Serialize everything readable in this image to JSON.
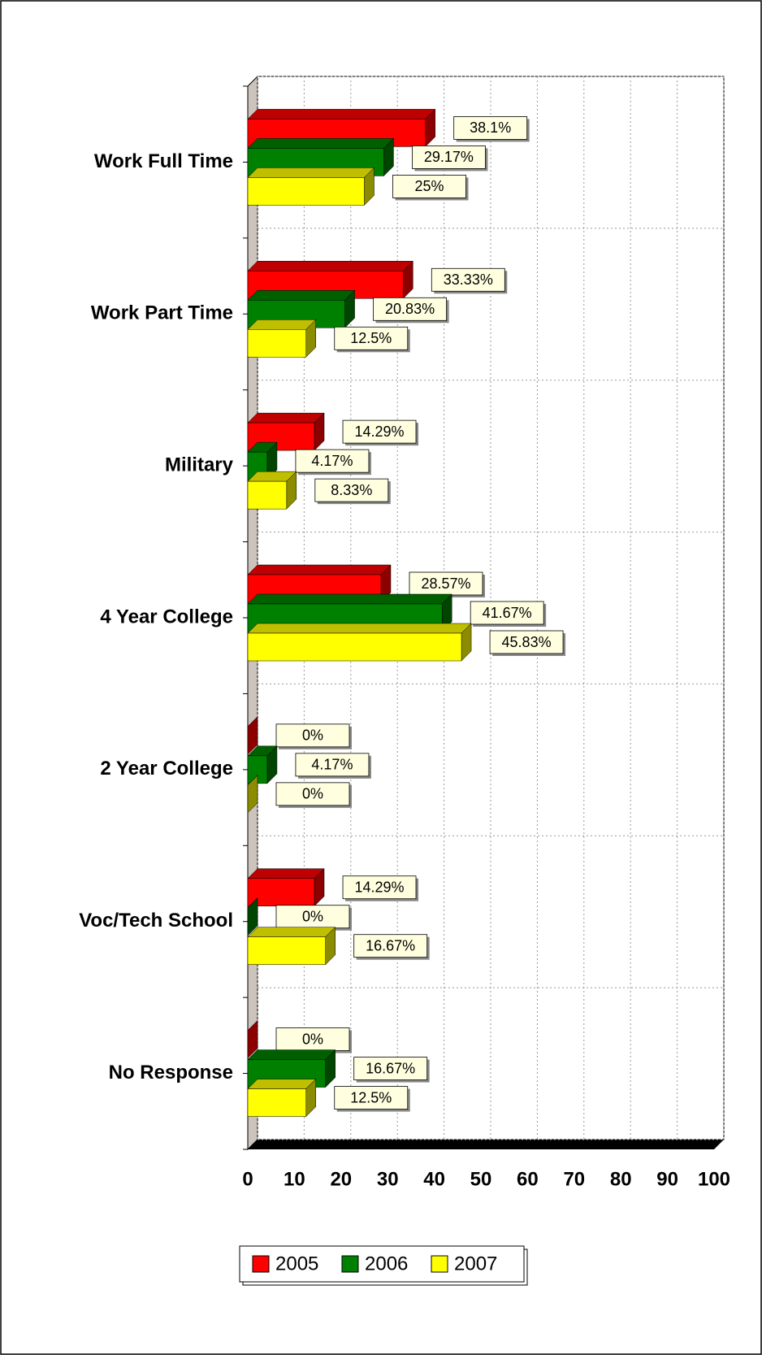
{
  "chart_data": {
    "type": "bar",
    "orientation": "horizontal",
    "categories": [
      "Work Full Time",
      "Work Part Time",
      "Military",
      "4 Year College",
      "2 Year College",
      "Voc/Tech School",
      "No Response"
    ],
    "series": [
      {
        "name": "2005",
        "color": "#ff0000",
        "values": [
          38.1,
          33.33,
          14.29,
          28.57,
          0,
          14.29,
          0
        ],
        "value_labels": [
          "38.1%",
          "33.33%",
          "14.29%",
          "28.57%",
          "0%",
          "14.29%",
          "0%"
        ]
      },
      {
        "name": "2006",
        "color": "#008000",
        "values": [
          29.17,
          20.83,
          4.17,
          41.67,
          4.17,
          0,
          16.67
        ],
        "value_labels": [
          "29.17%",
          "20.83%",
          "4.17%",
          "41.67%",
          "4.17%",
          "0%",
          "16.67%"
        ]
      },
      {
        "name": "2007",
        "color": "#ffff00",
        "values": [
          25,
          12.5,
          8.33,
          45.83,
          0,
          16.67,
          12.5
        ],
        "value_labels": [
          "25%",
          "12.5%",
          "8.33%",
          "45.83%",
          "0%",
          "16.67%",
          "12.5%"
        ]
      }
    ],
    "xlim": [
      0,
      100
    ],
    "xticks": [
      0,
      10,
      20,
      30,
      40,
      50,
      60,
      70,
      80,
      90,
      100
    ],
    "grid": true,
    "legend": "bottom"
  }
}
